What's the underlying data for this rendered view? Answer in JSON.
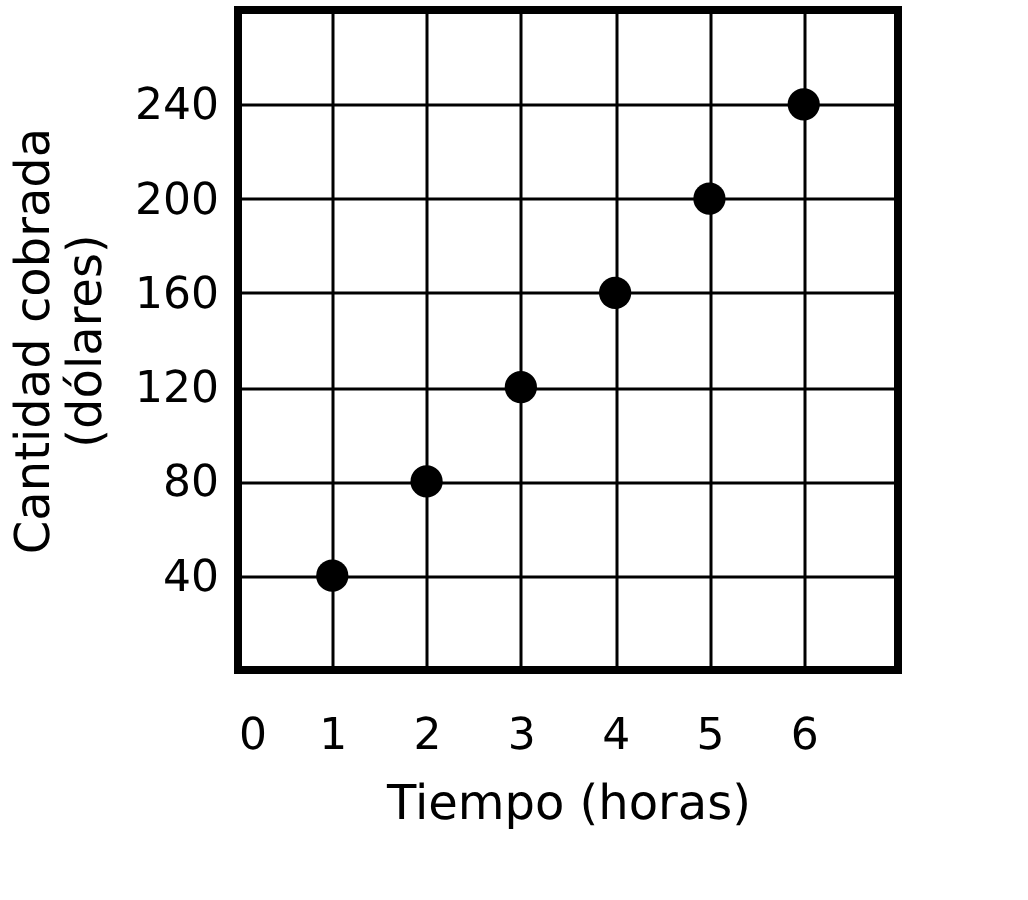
{
  "chart_data": {
    "type": "scatter",
    "xlabel": "Tiempo (horas)",
    "ylabel": "Cantidad cobrada\n(dólares)",
    "x": [
      1,
      2,
      3,
      4,
      5,
      6
    ],
    "series": [
      {
        "color": "#000000",
        "values": [
          40,
          80,
          120,
          160,
          200,
          240
        ]
      }
    ],
    "xlim": [
      0,
      7
    ],
    "ylim": [
      0,
      280
    ],
    "xticks": [
      0,
      1,
      2,
      3,
      4,
      5,
      6
    ],
    "yticks": [
      40,
      80,
      120,
      160,
      200,
      240
    ],
    "grid": true,
    "marker": "circle",
    "legend": false
  }
}
